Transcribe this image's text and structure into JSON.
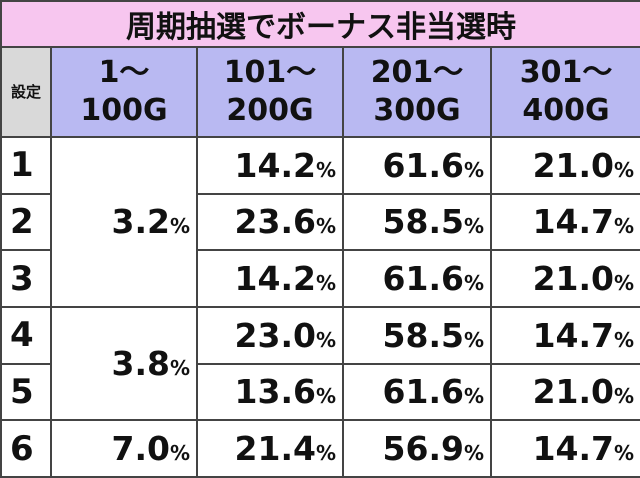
{
  "title": "周期抽選でボーナス非当選時",
  "header": [
    "設定",
    "1～\n100G",
    "101～\n200G",
    "201～\n300G",
    "301～\n400G"
  ],
  "rows": [
    {
      "setting": "1",
      "cells": [
        "3.2%",
        "14.2%",
        "61.6%",
        "21.0%"
      ]
    },
    {
      "setting": "2",
      "cells": [
        "23.6%",
        "58.5%",
        "14.7%"
      ]
    },
    {
      "setting": "3",
      "cells": [
        "14.2%",
        "61.6%",
        "21.0%"
      ]
    },
    {
      "setting": "4",
      "cells": [
        "3.8%",
        "23.0%",
        "58.5%",
        "14.7%"
      ]
    },
    {
      "setting": "5",
      "cells": [
        "13.6%",
        "61.6%",
        "21.0%"
      ]
    },
    {
      "setting": "6",
      "cells": [
        "7.0%",
        "21.4%",
        "56.9%",
        "14.7%"
      ]
    }
  ]
}
